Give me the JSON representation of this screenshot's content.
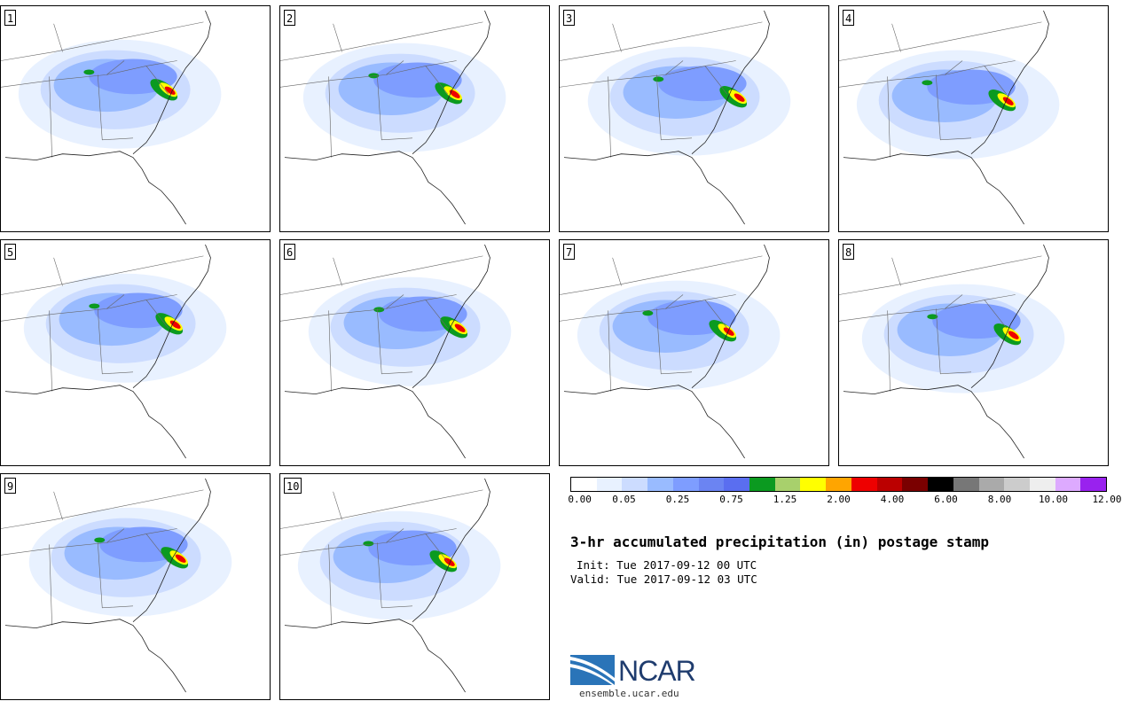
{
  "panels": [
    {
      "label": "1"
    },
    {
      "label": "2"
    },
    {
      "label": "3"
    },
    {
      "label": "4"
    },
    {
      "label": "5"
    },
    {
      "label": "6"
    },
    {
      "label": "7"
    },
    {
      "label": "8"
    },
    {
      "label": "9"
    },
    {
      "label": "10"
    }
  ],
  "colorbar": {
    "colors": [
      "#ffffff",
      "#e8f1ff",
      "#ccdcff",
      "#99bbff",
      "#7e9dff",
      "#6b84f2",
      "#5a6ef0",
      "#0b9a20",
      "#a8d06c",
      "#ffff00",
      "#ffa500",
      "#ee0000",
      "#bb0000",
      "#7a0000",
      "#000000",
      "#777777",
      "#aaaaaa",
      "#cccccc",
      "#eeeeee",
      "#ddaaff",
      "#9922ee"
    ],
    "tick_labels": [
      "0.00",
      "0.05",
      "0.25",
      "0.75",
      "1.25",
      "2.00",
      "4.00",
      "6.00",
      "8.00",
      "10.00",
      "12.00"
    ]
  },
  "title": "3-hr accumulated precipitation (in) postage stamp",
  "init": "Init: Tue 2017-09-12 00 UTC",
  "valid": "Valid: Tue 2017-09-12 03 UTC",
  "logo": {
    "text": "NCAR",
    "url": "ensemble.ucar.edu"
  }
}
